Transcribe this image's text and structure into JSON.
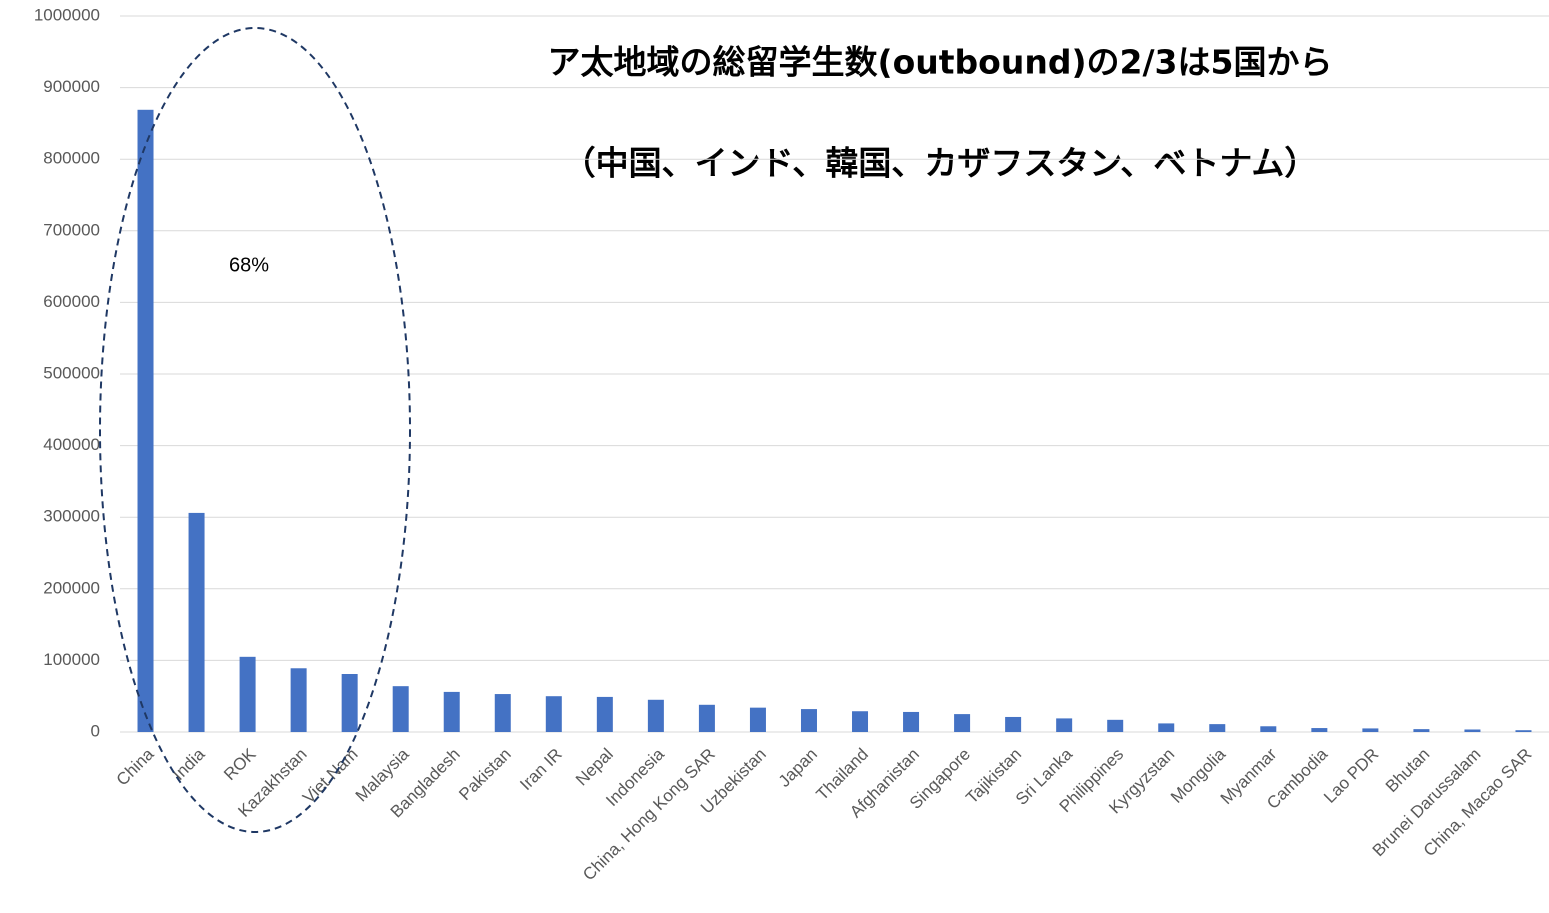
{
  "chart_data": {
    "type": "bar",
    "title": "ア太地域の総留学生数(outbound)の2/3は5国から",
    "subtitle": "（中国、インド、韓国、カザフスタン、ベトナム）",
    "annotation": "68%",
    "categories": [
      "China",
      "India",
      "ROK",
      "Kazakhstan",
      "Viet Nam",
      "Malaysia",
      "Bangladesh",
      "Pakistan",
      "Iran IR",
      "Nepal",
      "Indonesia",
      "China, Hong Kong SAR",
      "Uzbekistan",
      "Japan",
      "Thailand",
      "Afghanistan",
      "Singapore",
      "Tajikistan",
      "Sri Lanka",
      "Philippines",
      "Kyrgyzstan",
      "Mongolia",
      "Myanmar",
      "Cambodia",
      "Lao PDR",
      "Bhutan",
      "Brunei Darussalam",
      "China, Macao SAR"
    ],
    "values": [
      869000,
      306000,
      105000,
      89000,
      81000,
      64000,
      56000,
      53000,
      50000,
      49000,
      45000,
      38000,
      34000,
      32000,
      29000,
      28000,
      25000,
      21000,
      19000,
      17000,
      12000,
      11000,
      8000,
      5500,
      5000,
      4000,
      3500,
      2500
    ],
    "color": "#4472c4",
    "ylim": [
      0,
      1000000
    ],
    "yticks": [
      0,
      100000,
      200000,
      300000,
      400000,
      500000,
      600000,
      700000,
      800000,
      900000,
      1000000
    ],
    "grid": true
  }
}
